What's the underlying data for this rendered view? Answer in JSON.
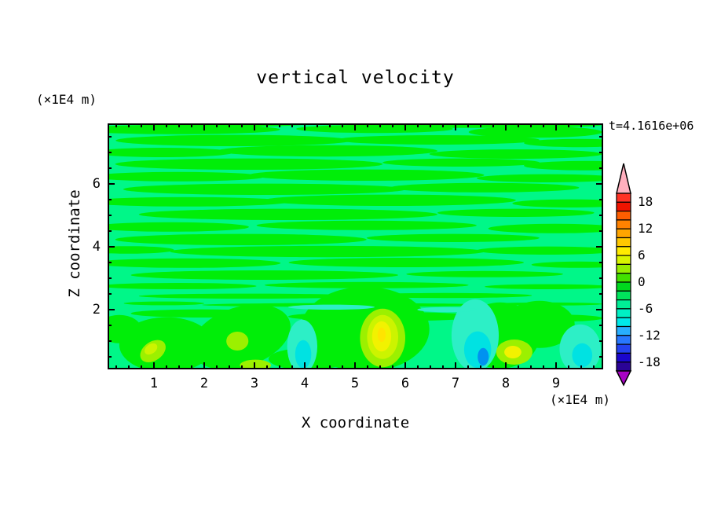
{
  "title": "vertical velocity",
  "annotation": {
    "time": "t=4.1616e+06"
  },
  "y_axis": {
    "label": "Z coordinate",
    "unit": "(×1E4 m)",
    "ticks": [
      {
        "text": "6",
        "z": 6
      },
      {
        "text": "4",
        "z": 4
      },
      {
        "text": "2",
        "z": 2
      }
    ]
  },
  "x_axis": {
    "label": "X coordinate",
    "unit": "(×1E4 m)",
    "ticks": [
      {
        "text": "1",
        "x": 1
      },
      {
        "text": "2",
        "x": 2
      },
      {
        "text": "3",
        "x": 3
      },
      {
        "text": "4",
        "x": 4
      },
      {
        "text": "5",
        "x": 5
      },
      {
        "text": "6",
        "x": 6
      },
      {
        "text": "7",
        "x": 7
      },
      {
        "text": "8",
        "x": 8
      },
      {
        "text": "9",
        "x": 9
      }
    ]
  },
  "colorbar": {
    "labels": [
      {
        "text": "18",
        "boundary": 1
      },
      {
        "text": "12",
        "boundary": 4
      },
      {
        "text": "6",
        "boundary": 7
      },
      {
        "text": "0",
        "boundary": 10
      },
      {
        "text": "-6",
        "boundary": 13
      },
      {
        "text": "-12",
        "boundary": 16
      },
      {
        "text": "-18",
        "boundary": 19
      }
    ],
    "segment_colors_top_to_bottom": [
      "#FF3226",
      "#F01400",
      "#FF5E00",
      "#FF8200",
      "#FFA500",
      "#FFC800",
      "#FFEB00",
      "#D8F500",
      "#96EE00",
      "#42E000",
      "#00D81E",
      "#00E55C",
      "#00EE96",
      "#00F0C4",
      "#00E9E9",
      "#28AEFF",
      "#2878FF",
      "#2342F0",
      "#1A06CD",
      "#2A0396"
    ],
    "arrow_top_color": "#FFAFBE",
    "arrow_bottom_color": "#A703C4",
    "outline_color": "#000000"
  },
  "chart_data": {
    "type": "heatmap",
    "subtype": "filled_contour_2d",
    "title": "vertical velocity",
    "xlabel": "X coordinate",
    "ylabel": "Z coordinate",
    "x_unit": "(×1E4 m)",
    "y_unit": "(×1E4 m)",
    "time_annotation": "t=4.1616e+06",
    "xlim": [
      0.08,
      9.94
    ],
    "zlim": [
      0.1,
      7.93
    ],
    "x_major_ticks": [
      1,
      2,
      3,
      4,
      5,
      6,
      7,
      8,
      9
    ],
    "x_minor_step": 0.25,
    "z_major_ticks": [
      2,
      4,
      6
    ],
    "z_minor_step": 0.5,
    "contour_interval": 2,
    "level_range": [
      -20,
      20
    ],
    "labeled_levels": [
      18,
      12,
      6,
      0,
      -6,
      -12,
      -18
    ],
    "grid": false,
    "legend_position": "right-colorbar",
    "description": "Filled-contour vertical-velocity field: thin alternating near-zero green/spring-green horizontal bands above z≈2e4 m; below z≈2e4 m stronger convective cells with positive (yellow/chartreuse) cores near x≈1, 3, 5.5, 8 (×1E4 m) and negative (cyan/blue) downdrafts near x≈3.9, 7.4, 9.5 (×1E4 m).",
    "field": {
      "background_color": "#00F788",
      "palette": {
        "green": "#00EE08",
        "chartreuse": "#9CF000",
        "yellowgreen": "#CCF400",
        "yellow": "#F2F200",
        "core": "#FFE400",
        "turquoise": "#2DEFC6",
        "cyan": "#00E2E2",
        "blue": "#0092F0",
        "spring": "#00F788"
      },
      "stripes_xzrr": [
        [
          1.48,
          7.73,
          2.03,
          0.15
        ],
        [
          5.39,
          7.75,
          1.56,
          0.13
        ],
        [
          8.59,
          7.65,
          1.33,
          0.18
        ],
        [
          2.5,
          7.9,
          1.5,
          0.08
        ],
        [
          7.58,
          7.88,
          2.34,
          0.1
        ],
        [
          2.58,
          7.38,
          2.34,
          0.18
        ],
        [
          6.64,
          7.4,
          2.03,
          0.15
        ],
        [
          9.45,
          7.3,
          1.09,
          0.13
        ],
        [
          1.17,
          7.0,
          1.41,
          0.15
        ],
        [
          4.45,
          7.05,
          2.19,
          0.18
        ],
        [
          8.2,
          6.95,
          1.72,
          0.15
        ],
        [
          2.89,
          6.63,
          2.66,
          0.18
        ],
        [
          7.11,
          6.68,
          1.56,
          0.13
        ],
        [
          9.61,
          6.58,
          1.25,
          0.15
        ],
        [
          1.48,
          6.23,
          1.72,
          0.15
        ],
        [
          5.23,
          6.28,
          2.34,
          0.18
        ],
        [
          8.83,
          6.18,
          1.41,
          0.13
        ],
        [
          3.2,
          5.83,
          2.81,
          0.18
        ],
        [
          7.58,
          5.88,
          1.88,
          0.15
        ],
        [
          1.64,
          5.43,
          2.03,
          0.15
        ],
        [
          5.7,
          5.48,
          2.5,
          0.18
        ],
        [
          9.3,
          5.38,
          1.17,
          0.13
        ],
        [
          3.67,
          5.03,
          2.97,
          0.18
        ],
        [
          8.2,
          5.08,
          1.56,
          0.13
        ],
        [
          1.33,
          4.63,
          1.56,
          0.15
        ],
        [
          5.23,
          4.68,
          2.19,
          0.15
        ],
        [
          8.98,
          4.58,
          1.33,
          0.15
        ],
        [
          2.73,
          4.23,
          2.5,
          0.18
        ],
        [
          6.95,
          4.28,
          1.72,
          0.13
        ],
        [
          4.45,
          3.85,
          3.13,
          0.18
        ],
        [
          8.83,
          3.88,
          1.41,
          0.13
        ],
        [
          0.5,
          3.9,
          0.9,
          0.12
        ],
        [
          1.64,
          3.48,
          1.88,
          0.15
        ],
        [
          6.02,
          3.5,
          2.34,
          0.15
        ],
        [
          9.45,
          3.43,
          0.94,
          0.1
        ],
        [
          3.2,
          3.1,
          2.66,
          0.15
        ],
        [
          7.58,
          3.13,
          1.56,
          0.1
        ],
        [
          1.48,
          2.75,
          1.56,
          0.1
        ],
        [
          5.23,
          2.78,
          2.03,
          0.1
        ],
        [
          8.83,
          2.73,
          1.25,
          0.08
        ],
        [
          2.89,
          2.43,
          2.19,
          0.08
        ],
        [
          6.8,
          2.45,
          1.72,
          0.08
        ],
        [
          4.77,
          2.15,
          2.81,
          0.06
        ],
        [
          8.83,
          2.18,
          1.09,
          0.05
        ],
        [
          1.2,
          2.2,
          0.8,
          0.06
        ],
        [
          1.95,
          1.88,
          1.41,
          0.13
        ],
        [
          5.55,
          1.78,
          1.88,
          0.15
        ],
        [
          8.83,
          1.73,
          1.1,
          0.12
        ]
      ],
      "blobs": [
        [
          "green",
          1.25,
          0.88,
          0.94,
          0.88,
          0
        ],
        [
          "green",
          2.73,
          1.13,
          1.02,
          0.95,
          -18
        ],
        [
          "green",
          5.2,
          1.38,
          1.28,
          1.35,
          0
        ],
        [
          "green",
          4.06,
          0.43,
          0.78,
          0.35,
          0
        ],
        [
          "green",
          7.89,
          1.18,
          0.78,
          1.05,
          0
        ],
        [
          "green",
          8.67,
          1.53,
          0.7,
          0.75,
          0
        ],
        [
          "green",
          0.31,
          1.38,
          0.44,
          0.45,
          0
        ],
        [
          "turquoise",
          3.95,
          0.83,
          0.3,
          0.85,
          0
        ],
        [
          "turquoise",
          7.39,
          1.18,
          0.47,
          1.15,
          0
        ],
        [
          "turquoise",
          9.48,
          0.75,
          0.41,
          0.78,
          0
        ],
        [
          "turquoise",
          4.53,
          2.08,
          0.86,
          0.08,
          0
        ],
        [
          "turquoise",
          6.83,
          2.0,
          0.59,
          0.08,
          0
        ],
        [
          "cyan",
          3.97,
          0.58,
          0.16,
          0.45,
          0
        ],
        [
          "cyan",
          7.44,
          0.73,
          0.27,
          0.58,
          0
        ],
        [
          "cyan",
          9.52,
          0.55,
          0.2,
          0.38,
          0
        ],
        [
          "blue",
          7.55,
          0.5,
          0.11,
          0.28,
          0
        ],
        [
          "chartreuse",
          0.98,
          0.68,
          0.28,
          0.3,
          -35
        ],
        [
          "chartreuse",
          2.66,
          1.0,
          0.22,
          0.3,
          0
        ],
        [
          "chartreuse",
          5.55,
          1.1,
          0.45,
          0.93,
          0
        ],
        [
          "chartreuse",
          8.17,
          0.65,
          0.36,
          0.4,
          0
        ],
        [
          "chartreuse",
          3.02,
          0.23,
          0.31,
          0.18,
          0
        ],
        [
          "yellowgreen",
          0.94,
          0.75,
          0.14,
          0.15,
          -35
        ],
        [
          "yellowgreen",
          5.55,
          1.13,
          0.31,
          0.7,
          0
        ],
        [
          "yellow",
          5.53,
          1.15,
          0.19,
          0.48,
          0
        ],
        [
          "yellow",
          8.14,
          0.65,
          0.17,
          0.2,
          0
        ],
        [
          "core",
          5.53,
          1.2,
          0.08,
          0.23,
          0
        ]
      ]
    }
  }
}
